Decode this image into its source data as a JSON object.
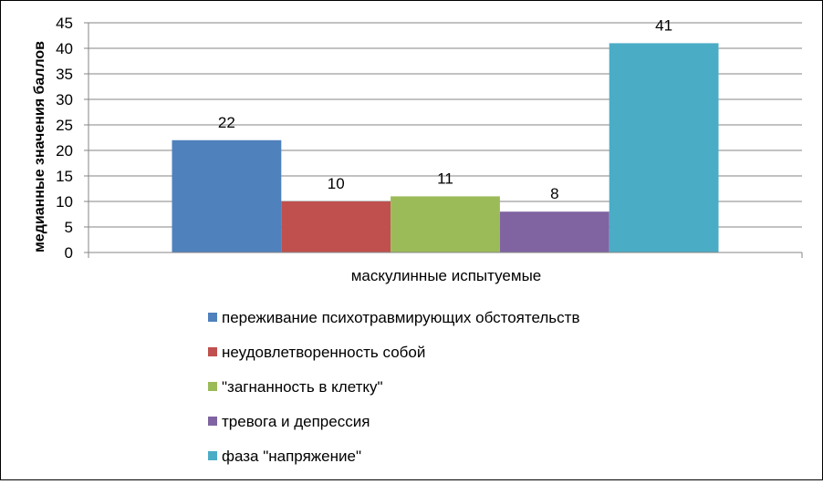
{
  "chart_data": {
    "type": "bar",
    "categories": [
      "маскулинные испытуемые"
    ],
    "series": [
      {
        "name": "переживание  психотравмирующих обстоятельств",
        "values": [
          22
        ],
        "color": "#4F81BD"
      },
      {
        "name": "неудовлетворенность собой",
        "values": [
          10
        ],
        "color": "#C0504D"
      },
      {
        "name": "\"загнанность в клетку\"",
        "values": [
          11
        ],
        "color": "#9BBB59"
      },
      {
        "name": "тревога и депрессия",
        "values": [
          8
        ],
        "color": "#8064A2"
      },
      {
        "name": "фаза \"напряжение\"",
        "values": [
          41
        ],
        "color": "#4BACC6"
      }
    ],
    "title": "",
    "xlabel": "",
    "ylabel": "медианные значения баллов",
    "ylim": [
      0,
      45
    ],
    "yticks": [
      0,
      5,
      10,
      15,
      20,
      25,
      30,
      35,
      40,
      45
    ],
    "grid": true,
    "legend_position": "bottom",
    "data_labels": true
  }
}
